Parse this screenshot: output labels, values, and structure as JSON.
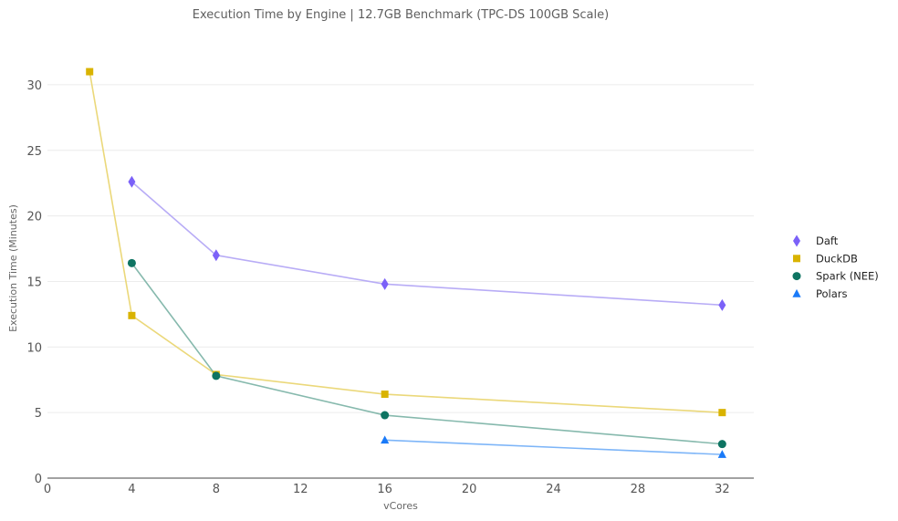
{
  "chart_data": {
    "type": "line",
    "title": "Execution Time by Engine | 12.7GB Benchmark (TPC-DS 100GB Scale)",
    "xlabel": "vCores",
    "ylabel": "Execution Time (Minutes)",
    "xlim": [
      0,
      33.5
    ],
    "ylim": [
      0,
      32.5
    ],
    "xticks": [
      0,
      4,
      8,
      12,
      16,
      20,
      24,
      28,
      32
    ],
    "yticks": [
      0,
      5,
      10,
      15,
      20,
      25,
      30
    ],
    "grid": "horizontal",
    "legend_position": "right",
    "series": [
      {
        "name": "Daft",
        "marker": "diamond",
        "color": "#7B61F8",
        "line_color": "#B8ACF6",
        "points": [
          [
            4,
            22.6
          ],
          [
            8,
            17.0
          ],
          [
            16,
            14.8
          ],
          [
            32,
            13.2
          ]
        ]
      },
      {
        "name": "DuckDB",
        "marker": "square",
        "color": "#D9B300",
        "line_color": "#EBD87A",
        "points": [
          [
            2,
            31.0
          ],
          [
            4,
            12.4
          ],
          [
            8,
            7.9
          ],
          [
            16,
            6.4
          ],
          [
            32,
            5.0
          ]
        ]
      },
      {
        "name": "Spark (NEE)",
        "marker": "circle",
        "color": "#0E7462",
        "line_color": "#86B9AD",
        "points": [
          [
            4,
            16.4
          ],
          [
            8,
            7.8
          ],
          [
            16,
            4.8
          ],
          [
            32,
            2.6
          ]
        ]
      },
      {
        "name": "Polars",
        "marker": "triangle",
        "color": "#1A7AF8",
        "line_color": "#7DB5F8",
        "points": [
          [
            16,
            2.9
          ],
          [
            32,
            1.8
          ]
        ]
      }
    ]
  }
}
